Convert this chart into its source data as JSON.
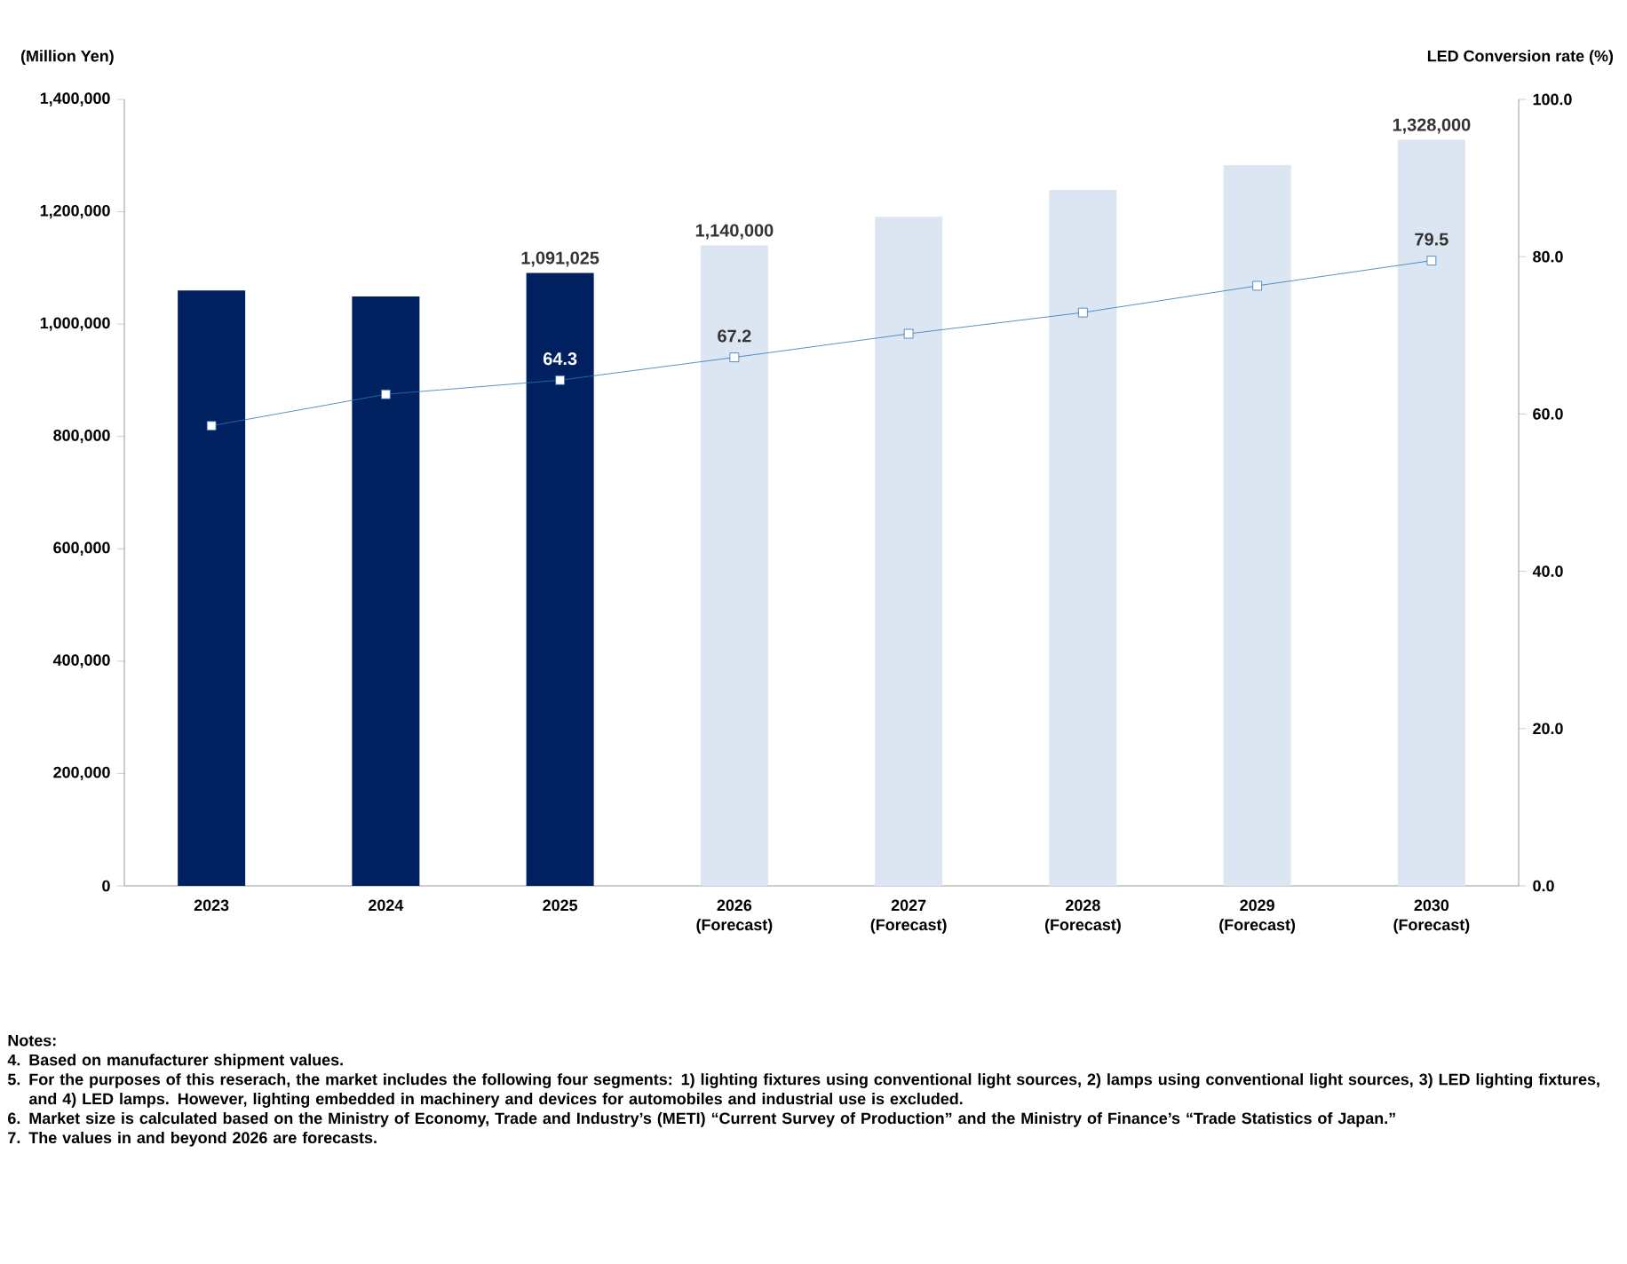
{
  "chart_data": {
    "type": "bar",
    "categories": [
      "2023",
      "2024",
      "2025",
      "2026 (Forecast)",
      "2027 (Forecast)",
      "2028 (Forecast)",
      "2029 (Forecast)",
      "2030 (Forecast)"
    ],
    "series": [
      {
        "colors": [
          "#002060",
          "#002060",
          "#002060",
          "#dce6f2",
          "#dce6f2",
          "#dce6f2",
          "#dce6f2",
          "#dce6f2"
        ],
        "values": [
          1060000,
          1049000,
          1091025,
          1140000,
          1191000,
          1239000,
          1283000,
          1328000
        ],
        "value_labels": [
          null,
          null,
          "1,091,025",
          "1,140,000",
          null,
          null,
          null,
          "1,328,000"
        ]
      },
      {
        "type": "line",
        "axis": "y2",
        "color": "#2e75b6",
        "marker": "square",
        "values": [
          58.5,
          62.5,
          64.3,
          67.2,
          70.2,
          72.9,
          76.3,
          79.5
        ],
        "value_labels": [
          null,
          null,
          "64.3",
          "67.2",
          null,
          null,
          null,
          "79.5"
        ]
      }
    ],
    "ylabel": "(Million Yen)",
    "y2label": "LED Conversion rate (%)",
    "ylim": [
      0,
      1400000
    ],
    "yticks": [
      0,
      {
        "value": 200000,
        "label": "200,000"
      },
      {
        "value": 400000,
        "label": "400,000"
      },
      {
        "value": 600000,
        "label": "600,000"
      },
      {
        "value": 800000,
        "label": "800,000"
      },
      {
        "value": 1000000,
        "label": "1,000,000"
      },
      {
        "value": 1200000,
        "label": "1,200,000"
      },
      {
        "value": 1400000,
        "label": "1,400,000"
      }
    ],
    "y2lim": [
      0,
      100
    ],
    "y2ticks": [
      {
        "value": 0,
        "label": "0.0"
      },
      {
        "value": 20,
        "label": "20.0"
      },
      {
        "value": 40,
        "label": "40.0"
      },
      {
        "value": 60,
        "label": "60.0"
      },
      {
        "value": 80,
        "label": "80.0"
      },
      {
        "value": 100,
        "label": "100.0"
      }
    ],
    "annotations": [
      "Notes:",
      "4. Based on manufacturer shipment values.",
      "5. For the purposes of this reserach, the market includes the following four segments: 1) lighting fixtures using conventional light sources, 2) lamps using conventional light sources, 3) LED lighting fixtures, and 4) LED lamps. However, lighting embedded in machinery and devices for automobiles and industrial use is excluded.",
      "6.  Market size is calculated based on the Ministry of Economy, Trade and Industry’s (METI) “Current Survey of Production” and the Ministry of Finance’s “Trade Statistics of Japan.”",
      "7. The values in and beyond 2026 are forecasts."
    ]
  }
}
